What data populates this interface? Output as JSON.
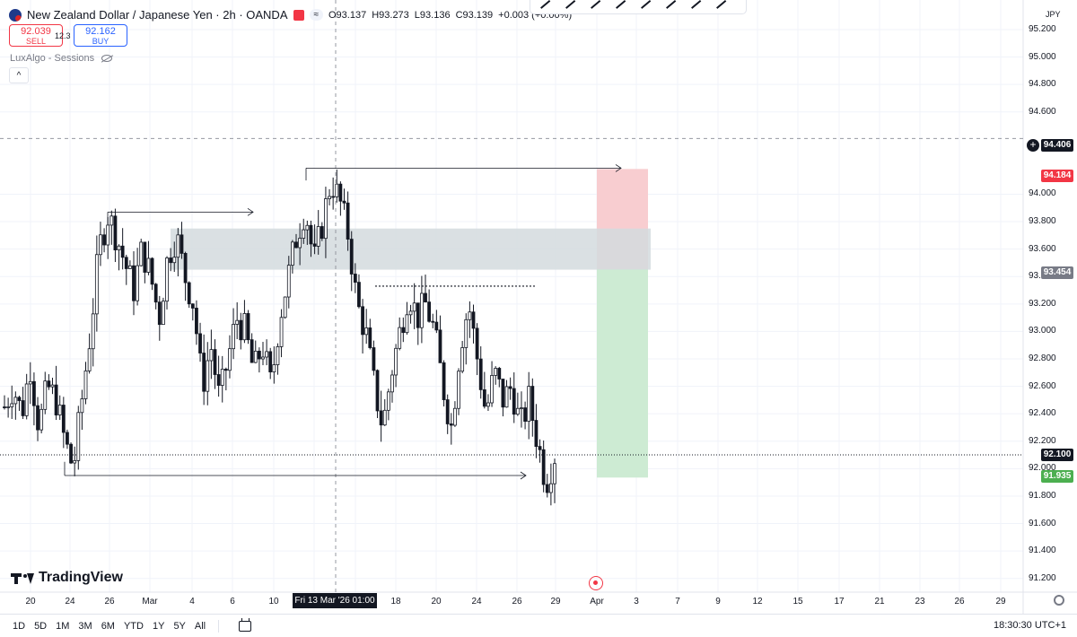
{
  "header": {
    "symbol_title": "New Zealand Dollar / Japanese Yen · 2h · OANDA",
    "ohlc": {
      "o": "O93.137",
      "h": "H93.273",
      "l": "L93.136",
      "c": "C93.139",
      "chg": "+0.003 (+0.00%)"
    },
    "pill": "≈"
  },
  "trade": {
    "sell_price": "92.039",
    "sell_label": "SELL",
    "spread": "12.3",
    "buy_price": "92.162",
    "buy_label": "BUY"
  },
  "indicator": {
    "name": "LuxAlgo - Sessions"
  },
  "collapse_glyph": "^",
  "currency": "JPY",
  "price_axis": {
    "ticks": [
      "95.200",
      "95.000",
      "94.800",
      "94.600",
      "94.000",
      "93.800",
      "93.600",
      "93.400",
      "93.200",
      "93.000",
      "92.800",
      "92.600",
      "92.400",
      "92.200",
      "92.000",
      "91.800",
      "91.600",
      "91.400",
      "91.200"
    ]
  },
  "price_tags": {
    "crosshair": "94.406",
    "stop": "94.184",
    "entry": "93.454",
    "current": "92.100",
    "target": "91.935"
  },
  "time_axis": {
    "labels": [
      "20",
      "24",
      "26",
      "Mar",
      "4",
      "6",
      "10",
      "18",
      "20",
      "24",
      "26",
      "29",
      "Apr",
      "3",
      "7",
      "9",
      "12",
      "15",
      "17",
      "21",
      "23",
      "26",
      "29"
    ],
    "crosshair": "Fri 13 Mar '26   01:00"
  },
  "bottom_bar": {
    "ranges": [
      "1D",
      "5D",
      "1M",
      "3M",
      "6M",
      "YTD",
      "1Y",
      "5Y",
      "All"
    ],
    "clock": "18:30:30 UTC+1"
  },
  "logo_text": "TradingView",
  "colors": {
    "up": "#131722",
    "stop_zone": "#f8cdd0",
    "target_zone": "#cdebd3",
    "ob_zone": "#d3dade",
    "red": "#f23645",
    "green": "#4caf50"
  },
  "chart_data": {
    "type": "candlestick",
    "title": "New Zealand Dollar / Japanese Yen · 2h · OANDA",
    "ylim": [
      91.1,
      95.35
    ],
    "path": [
      92.45,
      92.6,
      92.4,
      92.75,
      92.3,
      92.6,
      92.5,
      92.2,
      92.0,
      92.5,
      93.0,
      93.6,
      93.85,
      93.7,
      93.5,
      93.3,
      93.6,
      93.4,
      93.1,
      93.55,
      93.7,
      93.4,
      93.2,
      92.6,
      92.9,
      92.5,
      92.8,
      93.1,
      93.0,
      92.7,
      92.9,
      92.6,
      93.1,
      93.4,
      93.7,
      93.9,
      93.5,
      93.8,
      94.1,
      93.95,
      93.7,
      93.2,
      93.0,
      92.6,
      92.3,
      92.7,
      93.0,
      93.3,
      93.1,
      93.2,
      93.0,
      92.6,
      92.3,
      92.9,
      93.2,
      92.8,
      92.4,
      92.7,
      92.5,
      92.6,
      92.3,
      92.5,
      92.2,
      91.9,
      92.1
    ]
  }
}
